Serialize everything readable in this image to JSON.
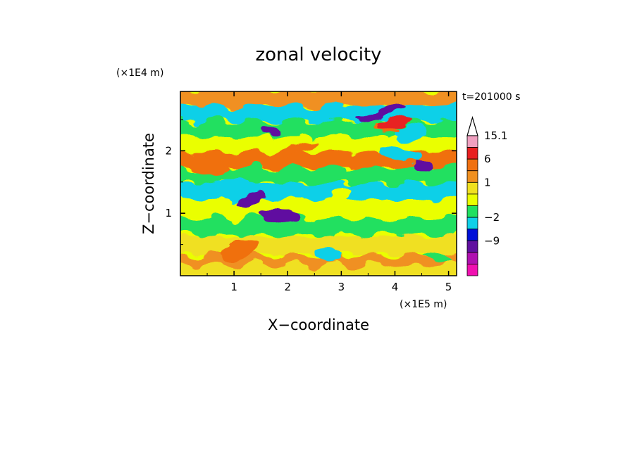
{
  "chart_data": {
    "type": "heatmap",
    "title": "zonal velocity",
    "xlabel": "X−coordinate",
    "ylabel": "Z−coordinate",
    "x_unit": "(×1E5 m)",
    "y_unit": "(×1E4 m)",
    "time_label": "t=201000 s",
    "xlim": [
      0,
      5.15
    ],
    "ylim": [
      0,
      2.95
    ],
    "x_ticks": [
      1,
      2,
      3,
      4,
      5
    ],
    "y_ticks": [
      1,
      2
    ],
    "colorbar": {
      "levels": [
        {
          "color": "#f0a0c0",
          "value": 15.1
        },
        {
          "color": "#e82020",
          "value": 10
        },
        {
          "color": "#f07010",
          "value": 6
        },
        {
          "color": "#f09020",
          "value": 3
        },
        {
          "color": "#f0e020",
          "value": 1
        },
        {
          "color": "#eaff00",
          "value": 0
        },
        {
          "color": "#20e060",
          "value": -1
        },
        {
          "color": "#10d0e8",
          "value": -2
        },
        {
          "color": "#0010d8",
          "value": -5
        },
        {
          "color": "#6010a0",
          "value": -9
        },
        {
          "color": "#b010b0",
          "value": -12
        },
        {
          "color": "#f010b0",
          "value": -15
        }
      ],
      "labels": [
        "15.1",
        "6",
        "1",
        "−2",
        "−9"
      ]
    },
    "bands": [
      {
        "z": 2.85,
        "u": 3
      },
      {
        "z": 2.6,
        "u": -2
      },
      {
        "z": 2.35,
        "u": -1
      },
      {
        "z": 2.1,
        "u": 0
      },
      {
        "z": 1.85,
        "u": 6
      },
      {
        "z": 1.6,
        "u": -1
      },
      {
        "z": 1.35,
        "u": -2
      },
      {
        "z": 1.1,
        "u": 0
      },
      {
        "z": 0.8,
        "u": -1
      },
      {
        "z": 0.5,
        "u": 1
      },
      {
        "z": 0.2,
        "u": 3
      },
      {
        "z": 0.05,
        "u": 1
      }
    ],
    "features": [
      {
        "x": 1.7,
        "z": 2.3,
        "u": -9
      },
      {
        "x": 1.35,
        "z": 1.25,
        "u": -9
      },
      {
        "x": 1.85,
        "z": 0.95,
        "u": -9
      },
      {
        "x": 3.75,
        "z": 2.6,
        "u": -9
      },
      {
        "x": 4.55,
        "z": 1.75,
        "u": -9
      },
      {
        "x": 4.3,
        "z": 2.3,
        "u": -2
      },
      {
        "x": 4.1,
        "z": 1.95,
        "u": -2
      },
      {
        "x": 0.85,
        "z": 1.4,
        "u": -2
      },
      {
        "x": 3.85,
        "z": 2.35,
        "u": 6
      },
      {
        "x": 4.0,
        "z": 2.45,
        "u": 10
      },
      {
        "x": 0.5,
        "z": 1.75,
        "u": 6
      },
      {
        "x": 2.1,
        "z": 2.0,
        "u": 6
      },
      {
        "x": 2.75,
        "z": 0.35,
        "u": -2
      },
      {
        "x": 1.1,
        "z": 0.4,
        "u": 6
      },
      {
        "x": 3.5,
        "z": 1.0,
        "u": 0
      },
      {
        "x": 3.0,
        "z": 1.3,
        "u": 0
      },
      {
        "x": 4.8,
        "z": 0.3,
        "u": -1
      }
    ]
  }
}
